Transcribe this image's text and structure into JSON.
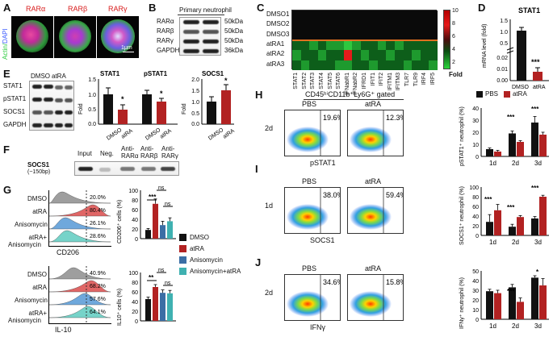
{
  "panels": {
    "A": "A",
    "B": "B",
    "C": "C",
    "D": "D",
    "E": "E",
    "F": "F",
    "G": "G",
    "H": "H",
    "I": "I",
    "J": "J"
  },
  "panelA": {
    "titles": [
      "RARα",
      "RARβ",
      "RARγ"
    ],
    "title_colors": [
      "#d81b1b",
      "#d81b1b",
      "#d81b1b"
    ],
    "side_label_actin": "Actin/",
    "side_label_dapi": "DAPI",
    "scale": "1μm"
  },
  "panelB": {
    "header": "Primary neutrophil",
    "rows": [
      "RARα",
      "RARβ",
      "RARγ",
      "GAPDH"
    ],
    "sizes": [
      "50kDa",
      "50kDa",
      "50kDa",
      "36kDa"
    ]
  },
  "panelC": {
    "rows": [
      "DMSO1",
      "DMSO2",
      "DMSO3",
      "atRA1",
      "atRA2",
      "atRA3"
    ],
    "cols": [
      "STAT1",
      "STAT2",
      "STAT3",
      "STAT4",
      "STAT5",
      "STAT6",
      "IFNabR1",
      "IFNabR2",
      "IFRD1",
      "IFIT1",
      "IFIT2",
      "IFITM1",
      "IFITM3",
      "TLR7",
      "TLR9",
      "IRF4",
      "IRF5"
    ],
    "legend_ticks": [
      "10",
      "8",
      "6",
      "4",
      "2"
    ],
    "legend_label": "Fold",
    "matrix": [
      [
        1,
        1,
        1,
        1,
        1,
        1,
        1,
        1,
        1,
        1,
        1,
        1,
        1,
        1,
        1,
        1,
        1
      ],
      [
        1,
        1,
        1,
        1,
        1,
        1,
        1,
        1,
        1,
        1,
        1,
        1,
        1,
        1,
        1,
        1,
        1
      ],
      [
        1,
        1,
        1,
        1,
        1,
        1,
        1,
        1,
        1,
        1,
        1,
        1,
        1,
        1,
        1,
        1,
        1
      ],
      [
        2,
        2,
        3,
        2,
        3,
        3,
        4,
        3,
        2,
        2,
        3,
        2,
        3,
        2,
        2,
        2,
        2
      ],
      [
        3,
        2,
        2,
        3,
        2,
        2,
        10,
        2,
        3,
        2,
        2,
        3,
        2,
        2,
        3,
        2,
        2
      ],
      [
        2,
        3,
        2,
        2,
        2,
        3,
        3,
        2,
        2,
        3,
        2,
        2,
        2,
        3,
        2,
        2,
        3
      ]
    ]
  },
  "panelD": {
    "title": "STAT1",
    "ylabel": "mRNA level (fold)",
    "yticks": [
      "1.5",
      "1.0",
      "0.5",
      "0.02",
      "0.01",
      "0.00"
    ],
    "categories": [
      "DMSO",
      "atRA"
    ],
    "sig": "***"
  },
  "panelE": {
    "blot_headers": [
      "DMSO",
      "atRA"
    ],
    "blot_rows": [
      "STAT1",
      "pSTAT1",
      "SOCS1",
      "GAPDH"
    ],
    "charts": [
      {
        "title": "STAT1",
        "ylabel": "Fold",
        "yticks": [
          "1.5",
          "1.0",
          "0.5",
          "0.0"
        ],
        "categories": [
          "DMSO",
          "atRA"
        ],
        "sig": "*"
      },
      {
        "title": "pSTAT1",
        "ylabel": "",
        "yticks": [],
        "categories": [
          "DMSO",
          "atRA"
        ],
        "sig": "*"
      },
      {
        "title": "SOCS1",
        "ylabel": "Fold",
        "yticks": [
          "2.0",
          "1.5",
          "1.0",
          "0.5",
          "0.0"
        ],
        "categories": [
          "DMSO",
          "atRA"
        ],
        "sig": "*"
      }
    ]
  },
  "panelF": {
    "row_label": "SOCS1",
    "row_sub": "(~150bp)",
    "headers": [
      "Input",
      "Neg.",
      "Anti-",
      "Anti-",
      "Anti-"
    ],
    "headers2": [
      "",
      "",
      "RARα",
      "RARβ",
      "RARγ"
    ]
  },
  "panelG": {
    "top": {
      "rows": [
        "DMSO",
        "atRA",
        "Anisomycin",
        "atRA+"
      ],
      "row_extra": "Anisomycin",
      "pcts": [
        "20.0%",
        "80.4%",
        "26.1%",
        "28.6%"
      ],
      "xlabel": "CD206",
      "ylabel": "CD206⁺ cells (%)",
      "yticks": [
        "100",
        "80",
        "60",
        "40",
        "20",
        "0"
      ],
      "sig": [
        "***",
        "ns",
        "ns"
      ]
    },
    "bottom": {
      "rows": [
        "DMSO",
        "atRA",
        "Anisomycin",
        "atRA+"
      ],
      "row_extra": "Anisomycin",
      "pcts": [
        "40.9%",
        "68.2%",
        "57.6%",
        "64.1%"
      ],
      "xlabel": "IL-10",
      "ylabel": "IL10⁺ cells (%)",
      "yticks": [
        "100",
        "80",
        "60",
        "40",
        "20",
        "0"
      ],
      "sig": [
        "**",
        "ns",
        "ns"
      ]
    },
    "legend": [
      "DMSO",
      "atRA",
      "Anisomycin",
      "Anisomycin+atRA"
    ],
    "legend_colors": [
      "#111111",
      "#b22222",
      "#3b6ea5",
      "#3fb1b1"
    ]
  },
  "panelH": {
    "gate": "CD45ʰⁱCD11b⁺Ly6G⁺ gated",
    "cond": [
      "PBS",
      "atRA"
    ],
    "pcts": [
      "19.6%",
      "12.3%"
    ],
    "day": "2d",
    "xlabel": "pSTAT1",
    "legend": [
      "PBS",
      "atRA"
    ],
    "ylabel": "pSTAT1⁺ neutrophil (%)",
    "yticks": [
      "40",
      "30",
      "20",
      "10",
      "0"
    ],
    "days": [
      "1d",
      "2d",
      "3d"
    ],
    "sig": [
      "***",
      "***"
    ]
  },
  "panelI": {
    "cond": [
      "PBS",
      "atRA"
    ],
    "pcts": [
      "38.0%",
      "59.4%"
    ],
    "day": "1d",
    "xlabel": "SOCS1",
    "ylabel": "SOCS1⁺ neutrophil (%)",
    "yticks": [
      "100",
      "80",
      "60",
      "40",
      "20",
      "0"
    ],
    "days": [
      "1d",
      "2d",
      "3d"
    ],
    "sig": [
      "***",
      "***",
      "***"
    ]
  },
  "panelJ": {
    "cond": [
      "PBS",
      "atRA"
    ],
    "pcts": [
      "34.6%",
      "15.8%"
    ],
    "day": "2d",
    "xlabel": "IFNγ",
    "ylabel": "IFNγ⁺ neutrophil (%)",
    "yticks": [
      "50",
      "40",
      "30",
      "20",
      "10",
      "0"
    ],
    "days": [
      "1d",
      "2d",
      "3d"
    ],
    "sig": [
      "***",
      "*"
    ]
  },
  "chart_data": [
    {
      "type": "bar",
      "title": "STAT1",
      "ylabel": "mRNA level (fold)",
      "categories": [
        "DMSO",
        "atRA"
      ],
      "values": [
        1.0,
        0.005
      ],
      "colors": [
        "#111111",
        "#b22222"
      ],
      "ylim_note": "broken axis 0-0.02 / 0.5-1.5"
    },
    {
      "type": "bar",
      "title": "STAT1",
      "ylabel": "Fold",
      "categories": [
        "DMSO",
        "atRA"
      ],
      "values": [
        1.0,
        0.5
      ],
      "errors": [
        0.2,
        0.15
      ],
      "ylim": [
        0,
        1.5
      ]
    },
    {
      "type": "bar",
      "title": "pSTAT1",
      "categories": [
        "DMSO",
        "atRA"
      ],
      "values": [
        1.0,
        0.75
      ],
      "errors": [
        0.12,
        0.1
      ],
      "ylim": [
        0,
        1.5
      ]
    },
    {
      "type": "bar",
      "title": "SOCS1",
      "ylabel": "Fold",
      "categories": [
        "DMSO",
        "atRA"
      ],
      "values": [
        1.0,
        1.5
      ],
      "errors": [
        0.2,
        0.25
      ],
      "ylim": [
        0,
        2.0
      ]
    },
    {
      "type": "bar",
      "ylabel": "CD206⁺ cells (%)",
      "categories": [
        "DMSO",
        "atRA",
        "Anisomycin",
        "Anisomycin+atRA"
      ],
      "values": [
        18,
        72,
        28,
        36
      ],
      "errors": [
        3,
        10,
        8,
        7
      ],
      "ylim": [
        0,
        100
      ]
    },
    {
      "type": "bar",
      "ylabel": "IL10⁺ cells (%)",
      "categories": [
        "DMSO",
        "atRA",
        "Anisomycin",
        "Anisomycin+atRA"
      ],
      "values": [
        45,
        70,
        58,
        57
      ],
      "errors": [
        4,
        5,
        6,
        6
      ],
      "ylim": [
        0,
        100
      ]
    },
    {
      "type": "bar",
      "ylabel": "pSTAT1⁺ neutrophil (%)",
      "categories": [
        "1d",
        "2d",
        "3d"
      ],
      "series": [
        {
          "name": "PBS",
          "values": [
            6,
            19,
            28
          ]
        },
        {
          "name": "atRA",
          "values": [
            4,
            12,
            18
          ]
        }
      ],
      "errors": [
        [
          1,
          2,
          5
        ],
        [
          1,
          1,
          2
        ]
      ],
      "ylim": [
        0,
        40
      ]
    },
    {
      "type": "bar",
      "ylabel": "SOCS1⁺ neutrophil (%)",
      "categories": [
        "1d",
        "2d",
        "3d"
      ],
      "series": [
        {
          "name": "PBS",
          "values": [
            28,
            18,
            35
          ]
        },
        {
          "name": "atRA",
          "values": [
            52,
            38,
            80
          ]
        }
      ],
      "errors": [
        [
          15,
          5,
          4
        ],
        [
          12,
          3,
          3
        ]
      ],
      "ylim": [
        0,
        100
      ]
    },
    {
      "type": "bar",
      "ylabel": "IFNγ⁺ neutrophil (%)",
      "categories": [
        "1d",
        "2d",
        "3d"
      ],
      "series": [
        {
          "name": "PBS",
          "values": [
            29,
            33,
            43
          ]
        },
        {
          "name": "atRA",
          "values": [
            27,
            18,
            35
          ]
        }
      ],
      "errors": [
        [
          2,
          3,
          2
        ],
        [
          3,
          4,
          7
        ]
      ],
      "ylim": [
        0,
        50
      ]
    }
  ]
}
